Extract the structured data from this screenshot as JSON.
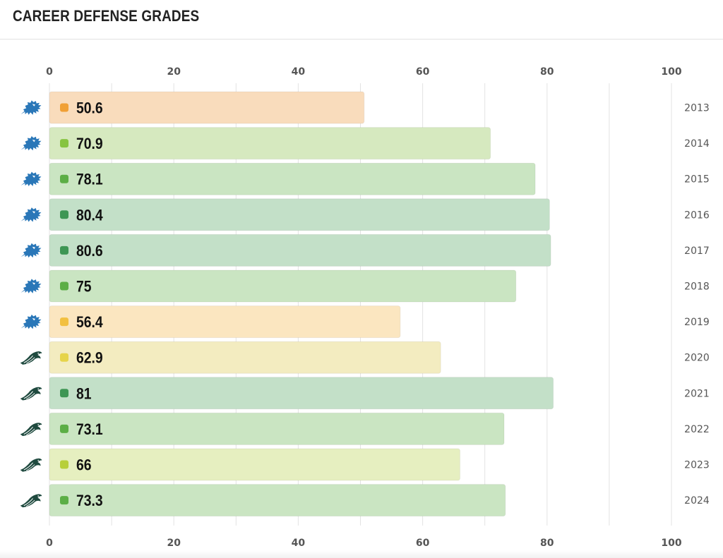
{
  "header": {
    "title": "CAREER DEFENSE GRADES"
  },
  "chart_data": {
    "type": "bar",
    "orientation": "horizontal",
    "title": "CAREER DEFENSE GRADES",
    "xlim": [
      0,
      100
    ],
    "xticks": [
      "0",
      "20",
      "40",
      "60",
      "80",
      "100"
    ],
    "xaxis_labels_top": true,
    "xaxis_labels_bottom": true,
    "grid": true,
    "categories": [
      "2013",
      "2014",
      "2015",
      "2016",
      "2017",
      "2018",
      "2019",
      "2020",
      "2021",
      "2022",
      "2023",
      "2024"
    ],
    "values": [
      50.6,
      70.9,
      78.1,
      80.4,
      80.6,
      75,
      56.4,
      62.9,
      81,
      73.1,
      66,
      73.3
    ],
    "value_labels": [
      "50.6",
      "70.9",
      "78.1",
      "80.4",
      "80.6",
      "75",
      "56.4",
      "62.9",
      "81",
      "73.1",
      "66",
      "73.3"
    ],
    "team_icons": [
      "lions-logo-icon",
      "lions-logo-icon",
      "lions-logo-icon",
      "lions-logo-icon",
      "lions-logo-icon",
      "lions-logo-icon",
      "lions-logo-icon",
      "eagles-logo-icon",
      "eagles-logo-icon",
      "eagles-logo-icon",
      "eagles-logo-icon",
      "eagles-logo-icon"
    ],
    "grade_colors": {
      "orange": {
        "dot": "#f0a035",
        "fill": "#f9dcbc"
      },
      "amber": {
        "dot": "#f2c040",
        "fill": "#fbe6c0"
      },
      "yellow": {
        "dot": "#e6d44a",
        "fill": "#f3ecc0"
      },
      "lime": {
        "dot": "#b7cf3a",
        "fill": "#e6efc0"
      },
      "light-green": {
        "dot": "#86c440",
        "fill": "#d6e9bf"
      },
      "green": {
        "dot": "#5cae46",
        "fill": "#cae5c2"
      },
      "dark-green": {
        "dot": "#3e9654",
        "fill": "#c3e0c8"
      }
    },
    "bar_grade_color": [
      "orange",
      "light-green",
      "green",
      "dark-green",
      "dark-green",
      "green",
      "amber",
      "yellow",
      "dark-green",
      "green",
      "lime",
      "green"
    ]
  }
}
